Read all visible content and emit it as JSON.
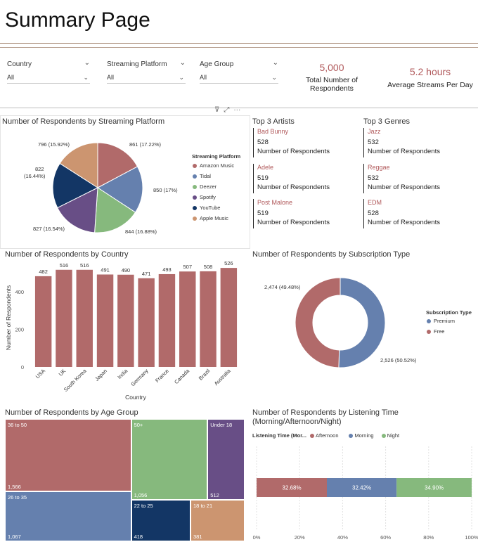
{
  "page": {
    "title": "Summary Page"
  },
  "slicers": [
    {
      "label": "Country",
      "value": "All"
    },
    {
      "label": "Streaming Platform",
      "value": "All"
    },
    {
      "label": "Age Group",
      "value": "All"
    }
  ],
  "kpis": [
    {
      "value": "5,000",
      "label_line1": "Total Number of",
      "label_line2": "Respondents"
    },
    {
      "value": "5.2 hours",
      "label_line1": "Average Streams Per Day",
      "label_line2": ""
    }
  ],
  "toolbar": {
    "filter_icon": "⊽",
    "focus_icon": "⤢",
    "more_icon": "···"
  },
  "pie": {
    "title": "Number of Respondents by Streaming Platform",
    "legend_title": "Streaming Platform",
    "labels": [
      "861 (17.22%)",
      "850 (17%)",
      "844 (16.88%)",
      "827 (16.54%)",
      "822",
      "(16.44%)",
      "796 (15.92%)"
    ]
  },
  "cards": {
    "artists_title": "Top 3 Artists",
    "genres_title": "Top 3 Genres",
    "caption": "Number of Respondents",
    "artists": [
      {
        "name": "Bad Bunny",
        "value": "528"
      },
      {
        "name": "Adele",
        "value": "519"
      },
      {
        "name": "Post Malone",
        "value": "519"
      }
    ],
    "genres": [
      {
        "name": "Jazz",
        "value": "532"
      },
      {
        "name": "Reggae",
        "value": "532"
      },
      {
        "name": "EDM",
        "value": "528"
      }
    ]
  },
  "country_chart": {
    "title": "Number of Respondents by Country"
  },
  "donut": {
    "title": "Number of Respondents by Subscription Type",
    "legend_title": "Subscription Type",
    "label_free": "2,474 (49.48%)",
    "label_premium": "2,526 (50.52%)"
  },
  "treemap": {
    "title": "Number of Respondents by Age Group"
  },
  "listening": {
    "title_line1": "Number of Respondents by Listening Time",
    "title_line2": "(Morning/Afternoon/Night)",
    "legend_title": "Listening Time (Mor..."
  },
  "colors": {
    "red": "#b16a6a",
    "blue": "#6580ae",
    "green": "#86b97d",
    "purple": "#684e86",
    "navy": "#133665",
    "tan": "#cc9570",
    "accent": "#b0585a"
  },
  "chart_data": [
    {
      "type": "pie",
      "title": "Number of Respondents by Streaming Platform",
      "legend_title": "Streaming Platform",
      "series": [
        {
          "name": "Amazon Music",
          "value": 861,
          "pct": "17.22%",
          "color": "#b16a6a"
        },
        {
          "name": "Tidal",
          "value": 850,
          "pct": "17%",
          "color": "#6580ae"
        },
        {
          "name": "Deezer",
          "value": 844,
          "pct": "16.88%",
          "color": "#86b97d"
        },
        {
          "name": "Spotify",
          "value": 827,
          "pct": "16.54%",
          "color": "#684e86"
        },
        {
          "name": "YouTube",
          "value": 822,
          "pct": "16.44%",
          "color": "#133665"
        },
        {
          "name": "Apple Music",
          "value": 796,
          "pct": "15.92%",
          "color": "#cc9570"
        }
      ]
    },
    {
      "type": "bar",
      "title": "Number of Respondents by Country",
      "xlabel": "Country",
      "ylabel": "Number of Respondents",
      "categories": [
        "USA",
        "UK",
        "South Korea",
        "Japan",
        "India",
        "Germany",
        "France",
        "Canada",
        "Brazil",
        "Australia"
      ],
      "values": [
        482,
        516,
        516,
        491,
        490,
        471,
        493,
        507,
        508,
        526
      ],
      "yticks": [
        0,
        200,
        400
      ],
      "ylim": [
        0,
        560
      ],
      "color": "#b16a6a"
    },
    {
      "type": "pie",
      "title": "Number of Respondents by Subscription Type",
      "legend_title": "Subscription Type",
      "donut": true,
      "series": [
        {
          "name": "Premium",
          "value": 2526,
          "pct": "50.52%",
          "color": "#6580ae"
        },
        {
          "name": "Free",
          "value": 2474,
          "pct": "49.48%",
          "color": "#b16a6a"
        }
      ]
    },
    {
      "type": "treemap",
      "title": "Number of Respondents by Age Group",
      "series": [
        {
          "name": "36 to 50",
          "value": 1566,
          "color": "#b16a6a"
        },
        {
          "name": "26 to 35",
          "value": 1067,
          "color": "#6580ae"
        },
        {
          "name": "50+",
          "value": 1056,
          "color": "#86b97d"
        },
        {
          "name": "Under 18",
          "value": 512,
          "color": "#684e86"
        },
        {
          "name": "22 to 25",
          "value": 418,
          "color": "#133665"
        },
        {
          "name": "18 to 21",
          "value": 381,
          "color": "#cc9570"
        }
      ]
    },
    {
      "type": "bar",
      "stacked_percent": true,
      "orientation": "horizontal",
      "title": "Number of Respondents by Listening Time (Morning/Afternoon/Night)",
      "legend_title": "Listening Time (Mor...",
      "xticks": [
        "0%",
        "20%",
        "40%",
        "60%",
        "80%",
        "100%"
      ],
      "series": [
        {
          "name": "Afternoon",
          "value": 32.68,
          "label": "32.68%",
          "color": "#b16a6a"
        },
        {
          "name": "Morning",
          "value": 32.42,
          "label": "32.42%",
          "color": "#6580ae"
        },
        {
          "name": "Night",
          "value": 34.9,
          "label": "34.90%",
          "color": "#86b97d"
        }
      ]
    }
  ]
}
